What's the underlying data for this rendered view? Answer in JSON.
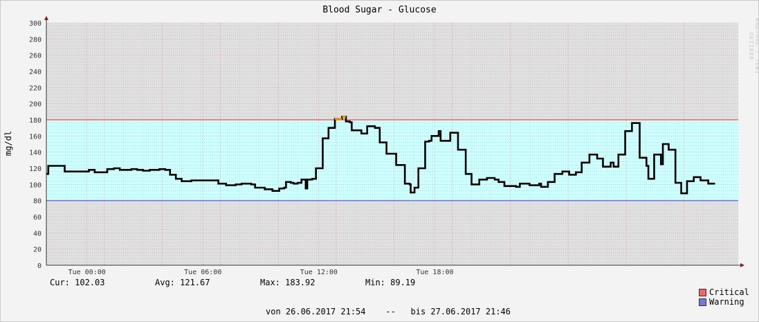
{
  "chart_data": {
    "type": "line",
    "title": "Blood Sugar - Glucose",
    "ylabel": "mg/dl",
    "ylim": [
      0,
      300
    ],
    "y_ticks": [
      "0",
      "20",
      "40",
      "60",
      "80",
      "100",
      "120",
      "140",
      "160",
      "180",
      "200",
      "220",
      "240",
      "260",
      "280",
      "300"
    ],
    "x_ticks": [
      "Tue 00:00",
      "Tue 06:00",
      "Tue 12:00",
      "Tue 18:00"
    ],
    "x_unit": "hours since 26.06.2017 21:54",
    "thresholds": [
      {
        "name": "Critical",
        "value": 180,
        "color": "#ee6666"
      },
      {
        "name": "Warning",
        "value": 80,
        "color": "#7777dd"
      }
    ],
    "band_color": "#ccffff",
    "outside_color": "#e0e0e0",
    "line_color": "#000000",
    "critical_line_color": "#ee8800",
    "series": [
      {
        "name": "Glucose",
        "points": [
          [
            0.0,
            113
          ],
          [
            0.1,
            123
          ],
          [
            0.5,
            123
          ],
          [
            0.95,
            116
          ],
          [
            1.8,
            116
          ],
          [
            2.2,
            118
          ],
          [
            2.5,
            115
          ],
          [
            3.0,
            115
          ],
          [
            3.15,
            119
          ],
          [
            3.5,
            120
          ],
          [
            3.8,
            118
          ],
          [
            4.4,
            119
          ],
          [
            4.7,
            118
          ],
          [
            5.0,
            117
          ],
          [
            5.35,
            118
          ],
          [
            5.85,
            119
          ],
          [
            6.15,
            118
          ],
          [
            6.4,
            112
          ],
          [
            6.7,
            107
          ],
          [
            7.0,
            104
          ],
          [
            7.3,
            104
          ],
          [
            7.5,
            105
          ],
          [
            8.5,
            105
          ],
          [
            8.9,
            101
          ],
          [
            9.3,
            99
          ],
          [
            9.8,
            100
          ],
          [
            10.1,
            101
          ],
          [
            10.6,
            100
          ],
          [
            10.8,
            96
          ],
          [
            11.1,
            96
          ],
          [
            11.3,
            94
          ],
          [
            11.7,
            92
          ],
          [
            12.05,
            95
          ],
          [
            12.3,
            96
          ],
          [
            12.4,
            103
          ],
          [
            12.65,
            102
          ],
          [
            12.8,
            101
          ],
          [
            13.0,
            102
          ],
          [
            13.2,
            106
          ],
          [
            13.42,
            95
          ],
          [
            13.5,
            106
          ],
          [
            13.75,
            107
          ],
          [
            13.95,
            120
          ],
          [
            14.25,
            120
          ],
          [
            14.3,
            157
          ],
          [
            14.5,
            157
          ],
          [
            14.6,
            170
          ],
          [
            14.8,
            170
          ],
          [
            14.93,
            181
          ],
          [
            15.3,
            183.92
          ],
          [
            15.5,
            178
          ],
          [
            15.7,
            177
          ],
          [
            15.8,
            167
          ],
          [
            16.1,
            167
          ],
          [
            16.3,
            163
          ],
          [
            16.5,
            163
          ],
          [
            16.6,
            172
          ],
          [
            16.9,
            172
          ],
          [
            17.0,
            170
          ],
          [
            17.25,
            152
          ],
          [
            17.5,
            152
          ],
          [
            17.6,
            138
          ],
          [
            17.85,
            138
          ],
          [
            18.1,
            124
          ],
          [
            18.3,
            124
          ],
          [
            18.55,
            101
          ],
          [
            18.8,
            100
          ],
          [
            18.85,
            90
          ],
          [
            19.0,
            90
          ],
          [
            19.05,
            96
          ],
          [
            19.15,
            96
          ],
          [
            19.25,
            120
          ],
          [
            19.5,
            120
          ],
          [
            19.6,
            153
          ],
          [
            19.7,
            153
          ],
          [
            19.8,
            154
          ],
          [
            19.93,
            160
          ],
          [
            20.2,
            160
          ],
          [
            20.3,
            166
          ],
          [
            20.4,
            154
          ],
          [
            20.6,
            154
          ],
          [
            20.9,
            164
          ],
          [
            21.2,
            164
          ],
          [
            21.3,
            143
          ],
          [
            21.6,
            143
          ],
          [
            21.7,
            113
          ],
          [
            21.85,
            113
          ],
          [
            22.0,
            100
          ],
          [
            22.3,
            100
          ],
          [
            22.4,
            106
          ],
          [
            22.7,
            106
          ],
          [
            22.8,
            108
          ],
          [
            23.0,
            108
          ],
          [
            23.2,
            106
          ],
          [
            23.4,
            103
          ],
          [
            23.6,
            103
          ],
          [
            23.7,
            98
          ],
          [
            24.0,
            98
          ],
          [
            24.3,
            97
          ],
          [
            24.5,
            101
          ],
          [
            24.8,
            101
          ],
          [
            25.0,
            99
          ],
          [
            25.3,
            99
          ],
          [
            25.5,
            101
          ],
          [
            25.6,
            97
          ],
          [
            25.8,
            97
          ],
          [
            25.95,
            103
          ],
          [
            26.2,
            103
          ],
          [
            26.3,
            113
          ],
          [
            26.55,
            113
          ],
          [
            26.7,
            116
          ],
          [
            26.95,
            116
          ],
          [
            27.05,
            112
          ],
          [
            27.3,
            112
          ],
          [
            27.4,
            115
          ],
          [
            27.6,
            115
          ],
          [
            27.7,
            127
          ],
          [
            28.0,
            127
          ],
          [
            28.1,
            137
          ],
          [
            28.4,
            137
          ],
          [
            28.5,
            132
          ],
          [
            28.7,
            132
          ],
          [
            28.8,
            122
          ],
          [
            29.1,
            122
          ],
          [
            29.2,
            127
          ],
          [
            29.35,
            122
          ],
          [
            29.5,
            122
          ],
          [
            29.6,
            137
          ],
          [
            29.85,
            137
          ],
          [
            29.95,
            166
          ],
          [
            30.25,
            166
          ],
          [
            30.3,
            176
          ],
          [
            30.6,
            176
          ],
          [
            30.7,
            133
          ],
          [
            30.95,
            133
          ],
          [
            31.05,
            123
          ],
          [
            31.15,
            107
          ],
          [
            31.35,
            107
          ],
          [
            31.45,
            137
          ],
          [
            31.7,
            137
          ],
          [
            31.8,
            125
          ],
          [
            31.9,
            150
          ],
          [
            32.1,
            150
          ],
          [
            32.2,
            143
          ],
          [
            32.45,
            143
          ],
          [
            32.55,
            102
          ],
          [
            32.8,
            102
          ],
          [
            32.85,
            89
          ],
          [
            33.1,
            89
          ],
          [
            33.15,
            104
          ],
          [
            33.45,
            104
          ],
          [
            33.5,
            109
          ],
          [
            33.8,
            109
          ],
          [
            33.85,
            105
          ],
          [
            34.15,
            105
          ],
          [
            34.25,
            101
          ],
          [
            34.6,
            101
          ]
        ]
      }
    ],
    "xlim": [
      0,
      35.8
    ]
  },
  "stats": {
    "cur": "Cur: 102.03",
    "avg": "Avg: 121.67",
    "max": "Max: 183.92",
    "min": "Min: 89.19"
  },
  "legend": [
    {
      "label": "Critical",
      "color": "#ee6666"
    },
    {
      "label": "Warning",
      "color": "#7777dd"
    }
  ],
  "footer": "von 26.06.2017 21:54    --   bis 27.06.2017 21:46",
  "watermark": "RRDTOOL / TOBI OETIKER"
}
